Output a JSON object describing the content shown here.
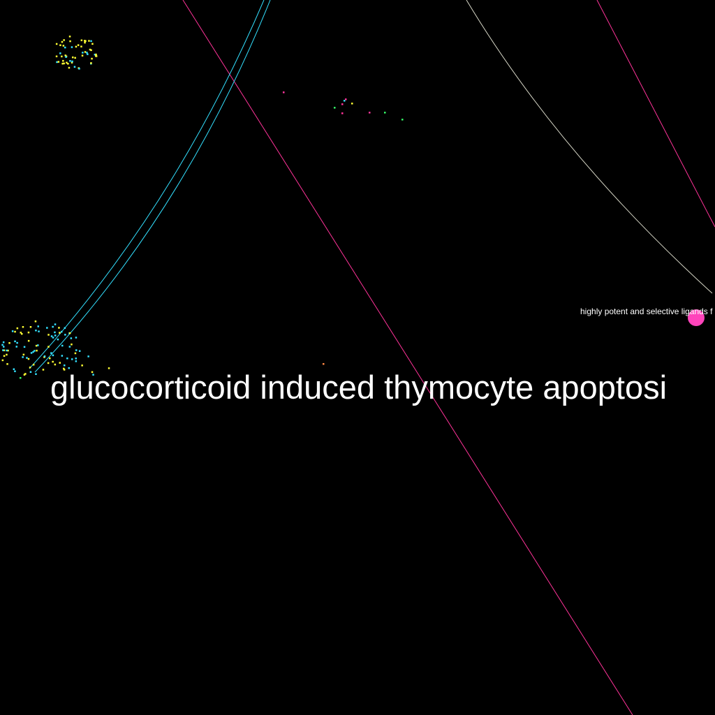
{
  "labels": {
    "large": "glucocorticoid induced thymocyte apoptosi",
    "small": "highly potent and selective ligands f"
  },
  "colors": {
    "background": "#000000",
    "label_text": "#ffffff",
    "cyan": "#33e0ff",
    "yellow": "#ffff33",
    "magenta": "#ff3399",
    "green": "#33ff66",
    "pale": "#d8d8c8",
    "node_pink": "#ff44bb",
    "orange": "#ff8844"
  }
}
